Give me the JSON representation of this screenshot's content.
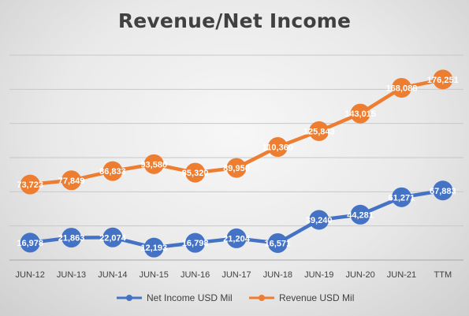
{
  "chart_data": {
    "type": "line",
    "title": "Revenue/Net Income",
    "categories": [
      "JUN-12",
      "JUN-13",
      "JUN-14",
      "JUN-15",
      "JUN-16",
      "JUN-17",
      "JUN-18",
      "JUN-19",
      "JUN-20",
      "JUN-21",
      "TTM"
    ],
    "series": [
      {
        "name": "Net Income USD Mil",
        "color": "#4472c4",
        "values": [
          16978,
          21863,
          22074,
          12193,
          16798,
          21204,
          16571,
          39240,
          44281,
          61271,
          67883
        ],
        "labels": [
          "16,978",
          "21,863",
          "22,074",
          "12,193",
          "16,798",
          "21,204",
          "16,571",
          "39,240",
          "44,281",
          "61,271",
          "67,883"
        ]
      },
      {
        "name": "Revenue USD Mil",
        "color": "#ed7d31",
        "values": [
          73723,
          77849,
          86833,
          93580,
          85320,
          89950,
          110360,
          125843,
          143015,
          168088,
          176251
        ],
        "labels": [
          "73,723",
          "77,849",
          "86,833",
          "93,580",
          "85,320",
          "89,950",
          "110,360",
          "125,843",
          "143,015",
          "168,088",
          "176,251"
        ]
      }
    ],
    "ylim": [
      0,
      200000
    ],
    "grid": true,
    "legend": "bottom"
  }
}
